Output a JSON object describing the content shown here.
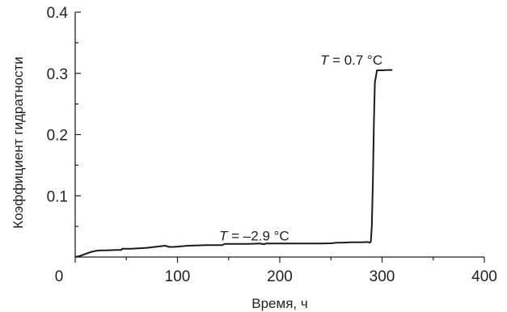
{
  "chart_data": {
    "type": "line",
    "title": "",
    "xlabel": "Время, ч",
    "ylabel": "Коэффициент гидратности",
    "xlim": [
      0,
      400
    ],
    "ylim": [
      0,
      0.4
    ],
    "xticks": [
      0,
      100,
      200,
      300,
      400
    ],
    "yticks": [
      0.1,
      0.2,
      0.3,
      0.4
    ],
    "xtick_labels": [
      "0",
      "100",
      "200",
      "300",
      "400"
    ],
    "ytick_labels": [
      "0.1",
      "0.2",
      "0.3",
      "0.4"
    ],
    "grid": false,
    "series": [
      {
        "x": [
          0,
          5,
          10,
          15,
          20,
          25,
          30,
          40,
          45,
          46,
          55,
          60,
          70,
          80,
          88,
          92,
          96,
          100,
          110,
          120,
          130,
          140,
          144,
          146,
          150,
          160,
          170,
          180,
          185,
          186,
          190,
          200,
          220,
          240,
          250,
          256,
          260,
          270,
          280,
          286,
          288,
          289,
          290,
          291,
          292,
          293,
          295,
          300,
          305,
          310
        ],
        "y": [
          0,
          0.002,
          0.005,
          0.008,
          0.01,
          0.011,
          0.011,
          0.0115,
          0.0115,
          0.0135,
          0.0135,
          0.014,
          0.015,
          0.017,
          0.0185,
          0.0165,
          0.0165,
          0.017,
          0.0185,
          0.019,
          0.0195,
          0.0195,
          0.0195,
          0.0215,
          0.0215,
          0.0215,
          0.0215,
          0.022,
          0.021,
          0.022,
          0.022,
          0.022,
          0.022,
          0.022,
          0.0225,
          0.0235,
          0.0235,
          0.024,
          0.024,
          0.0245,
          0.0235,
          0.025,
          0.05,
          0.12,
          0.22,
          0.285,
          0.305,
          0.305,
          0.3055,
          0.3055
        ]
      }
    ],
    "annotations": [
      {
        "var": "T",
        "text": " = –2.9 °C",
        "x": 175,
        "y": 0.027
      },
      {
        "var": "T",
        "text": " = 0.7 °C",
        "x": 270,
        "y": 0.314
      }
    ],
    "line_color": "#1a1a1a",
    "text_color": "#231f20"
  }
}
